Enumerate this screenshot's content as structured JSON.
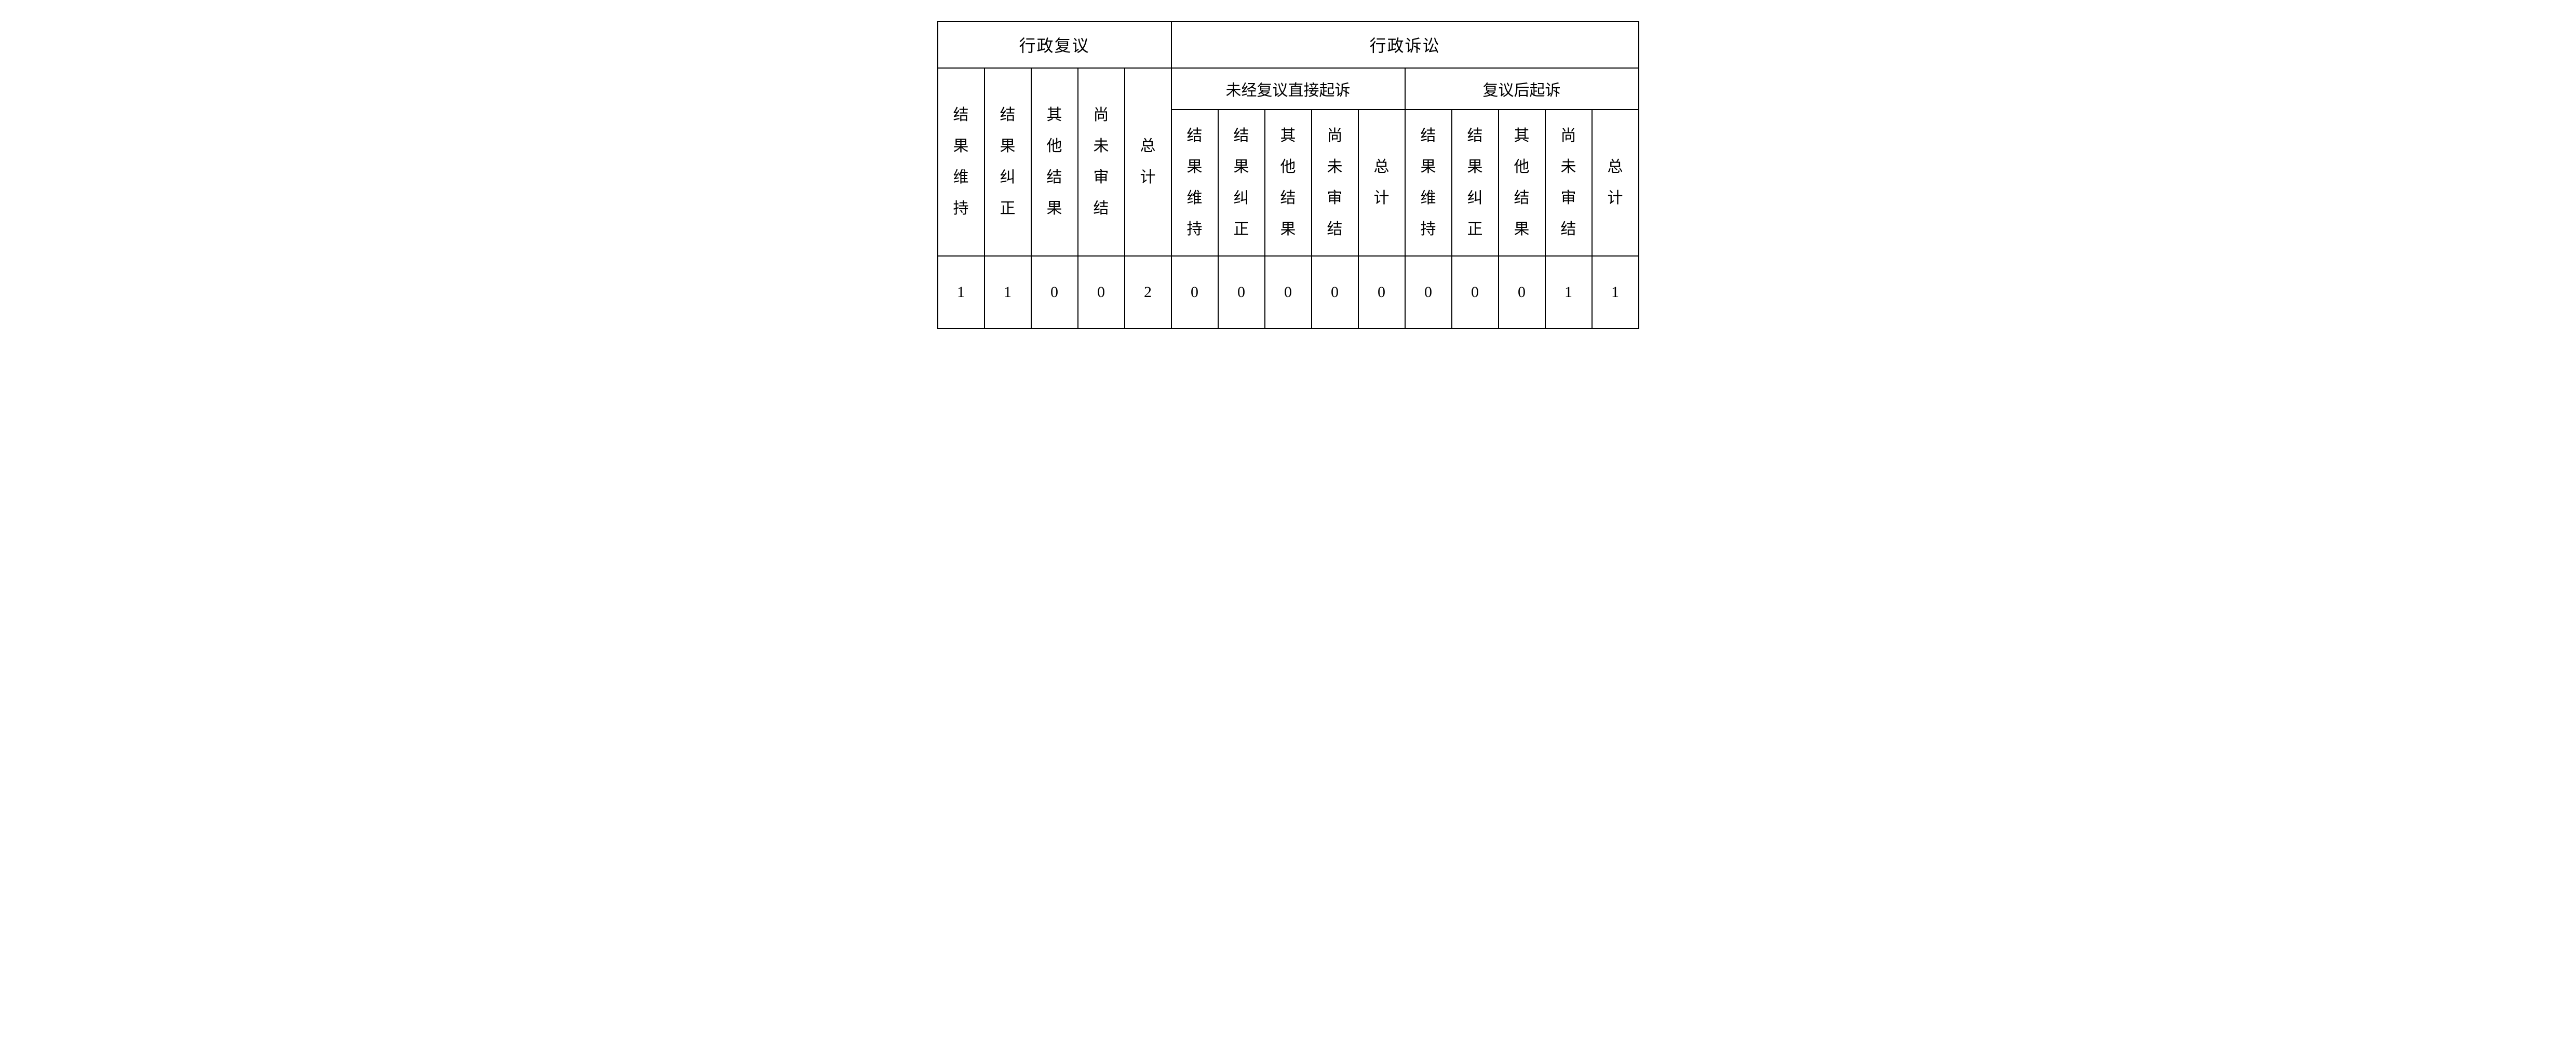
{
  "type": "table",
  "columns_count": 15,
  "top_headers": {
    "left": "行政复议",
    "right": "行政诉讼"
  },
  "sub_headers": {
    "direct": "未经复议直接起诉",
    "after": "复议后起诉"
  },
  "col_labels": {
    "c0": "结果维持",
    "c1": "结果纠正",
    "c2": "其他结果",
    "c3": "尚未审结",
    "c4": "总计",
    "c5": "结果维持",
    "c6": "结果纠正",
    "c7": "其他结果",
    "c8": "尚未审结",
    "c9": "总计",
    "c10": "结果维持",
    "c11": "结果纠正",
    "c12": "其他结果",
    "c13": "尚未审结",
    "c14": "总计"
  },
  "data": {
    "d0": "1",
    "d1": "1",
    "d2": "0",
    "d3": "0",
    "d4": "2",
    "d5": "0",
    "d6": "0",
    "d7": "0",
    "d8": "0",
    "d9": "0",
    "d10": "0",
    "d11": "0",
    "d12": "0",
    "d13": "1",
    "d14": "1"
  },
  "style": {
    "border_color": "#000000",
    "background_color": "#ffffff",
    "text_color": "#000000",
    "header_fontsize": 32,
    "cell_fontsize": 30,
    "font_family": "SimSun"
  }
}
